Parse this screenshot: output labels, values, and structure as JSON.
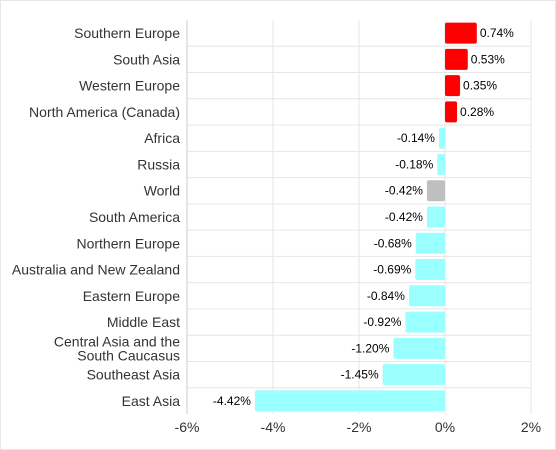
{
  "chart_data": {
    "type": "bar",
    "orientation": "horizontal",
    "categories": [
      "Southern Europe",
      "South Asia",
      "Western Europe",
      "North America (Canada)",
      "Africa",
      "Russia",
      "World",
      "South America",
      "Northern Europe",
      "Australia and New Zealand",
      "Eastern Europe",
      "Middle East",
      "Central Asia and the South Caucasus",
      "Southeast Asia",
      "East Asia"
    ],
    "values": [
      0.74,
      0.53,
      0.35,
      0.28,
      -0.14,
      -0.18,
      -0.42,
      -0.42,
      -0.68,
      -0.69,
      -0.84,
      -0.92,
      -1.2,
      -1.45,
      -4.42
    ],
    "value_labels": [
      "0.74%",
      "0.53%",
      "0.35%",
      "0.28%",
      "-0.14%",
      "-0.18%",
      "-0.42%",
      "-0.42%",
      "-0.68%",
      "-0.69%",
      "-0.84%",
      "-0.92%",
      "-1.20%",
      "-1.45%",
      "-4.42%"
    ],
    "category_lines": [
      [
        "Southern Europe"
      ],
      [
        "South Asia"
      ],
      [
        "Western Europe"
      ],
      [
        "North America (Canada)"
      ],
      [
        "Africa"
      ],
      [
        "Russia"
      ],
      [
        "World"
      ],
      [
        "South America"
      ],
      [
        "Northern Europe"
      ],
      [
        "Australia and New Zealand"
      ],
      [
        "Eastern Europe"
      ],
      [
        "Middle East"
      ],
      [
        "Central Asia and the",
        "South Caucasus"
      ],
      [
        "Southeast Asia"
      ],
      [
        "East Asia"
      ]
    ],
    "x_ticks": [
      -6,
      -4,
      -2,
      0,
      2
    ],
    "x_tick_labels": [
      "-6%",
      "-4%",
      "-2%",
      "0%",
      "2%"
    ],
    "xlim": [
      -6,
      2
    ],
    "grid": true,
    "title": "",
    "xlabel": "",
    "ylabel": "",
    "colors": {
      "positive": "#ff0000",
      "negative": "#99ffff",
      "highlight": "#bfbfbf",
      "highlight_category": "World",
      "grid": "#e6e6e6",
      "axis": "#cccccc"
    }
  }
}
